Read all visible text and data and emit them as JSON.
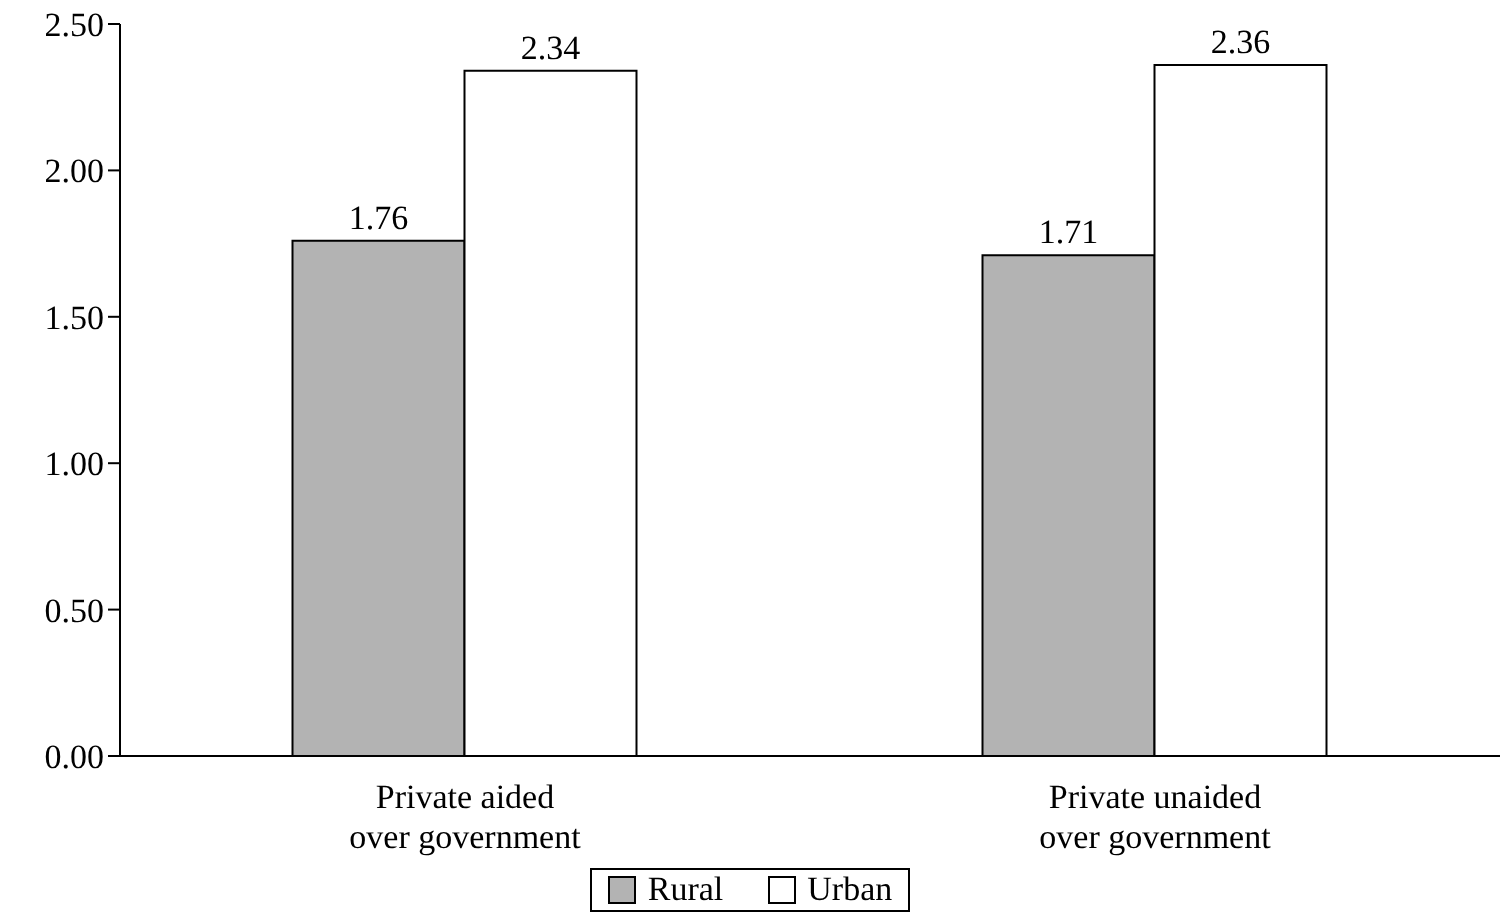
{
  "chart_data": {
    "type": "bar",
    "categories": [
      "Private aided over government",
      "Private unaided over government"
    ],
    "series": [
      {
        "name": "Rural",
        "color": "#b3b3b3",
        "values": [
          1.76,
          1.71
        ]
      },
      {
        "name": "Urban",
        "color": "#ffffff",
        "values": [
          2.34,
          2.36
        ]
      }
    ],
    "ylim": [
      0,
      2.5
    ],
    "yticks": [
      {
        "value": 0,
        "label": "0.00"
      },
      {
        "value": 0.5,
        "label": "0.50"
      },
      {
        "value": 1,
        "label": "1.00"
      },
      {
        "value": 1.5,
        "label": "1.50"
      },
      {
        "value": 2,
        "label": "2.00"
      },
      {
        "value": 2.5,
        "label": "2.50"
      }
    ],
    "data_labels": true,
    "grid": false,
    "legend": "bottom"
  }
}
